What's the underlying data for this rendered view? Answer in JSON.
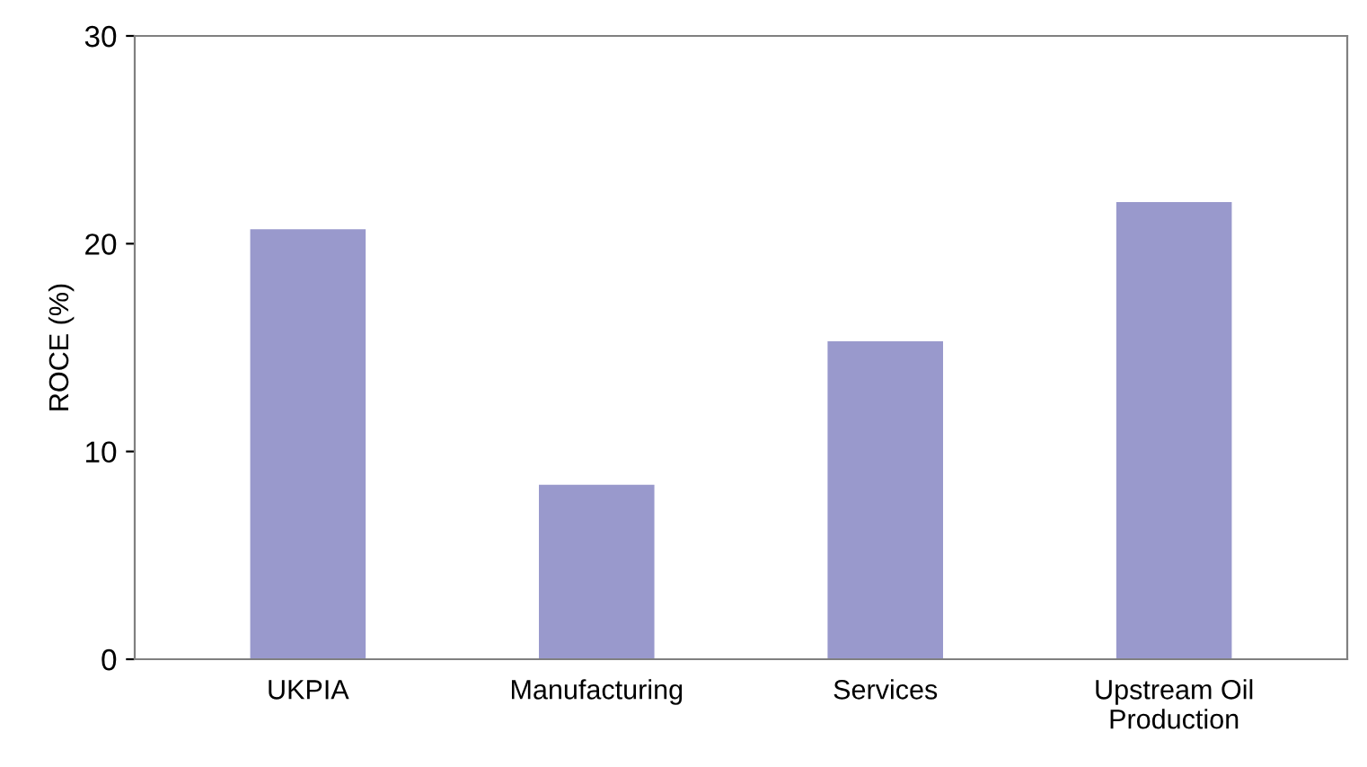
{
  "chart_data": {
    "type": "bar",
    "ylabel": "ROCE (%)",
    "categories": [
      "UKPIA",
      "Manufacturing",
      "Services",
      "Upstream Oil\nProduction"
    ],
    "values": [
      20.7,
      8.4,
      15.3,
      22.0
    ],
    "color": "#9999cc",
    "ylim": [
      0,
      30
    ],
    "yticks": [
      0,
      10,
      20,
      30
    ],
    "grid": false
  }
}
